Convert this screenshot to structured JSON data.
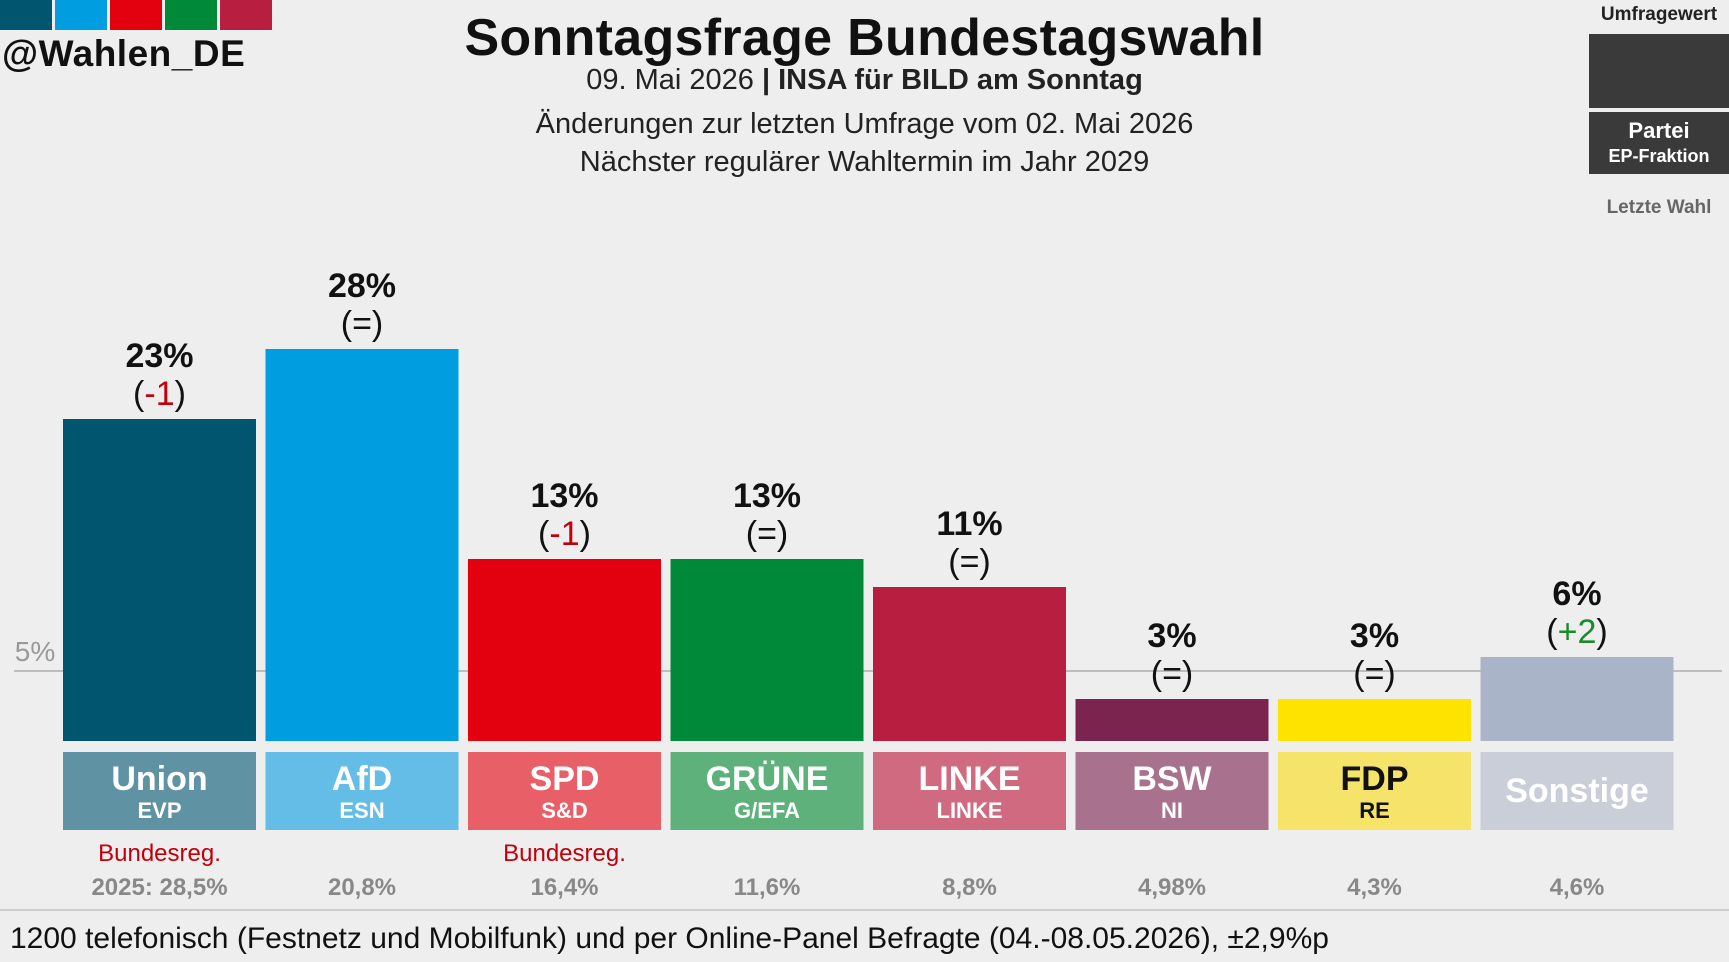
{
  "header": {
    "handle": "@Wahlen_DE",
    "title": "Sonntagsfrage Bundestagswahl",
    "date": "09. Mai 2026",
    "institute": "INSA für BILD am Sonntag",
    "change_note": "Änderungen zur letzten Umfrage vom 02. Mai 2026",
    "next_election": "Nächster regulärer Wahltermin im Jahr 2029",
    "stripe_colors": [
      "#02556f",
      "#009ee0",
      "#e3000f",
      "#008939",
      "#b71e3f"
    ]
  },
  "legend": {
    "top_label": "Umfragewert",
    "party_label": "Partei",
    "faction_label": "EP-Fraktion",
    "bottom_label": "Letzte Wahl"
  },
  "footer": {
    "note": "1200 telefonisch (Festnetz und Mobilfunk) und per Online-Panel Befragte (04.-08.05.2026), ±2,9%p"
  },
  "chart_data": {
    "type": "bar",
    "threshold": {
      "value": 5,
      "label": "5%"
    },
    "ylim": [
      0,
      30
    ],
    "bars": [
      {
        "party": "Union",
        "faction": "EVP",
        "value": 23,
        "value_label": "23%",
        "change": "-1",
        "change_color": "#c0000b",
        "color": "#02556f",
        "label_bg": "#5f93a4",
        "label_color": "#ffffff",
        "gov": "Bundesreg.",
        "last_election": "2025: 28,5%"
      },
      {
        "party": "AfD",
        "faction": "ESN",
        "value": 28,
        "value_label": "28%",
        "change": "=",
        "change_color": "#111111",
        "color": "#009ee0",
        "label_bg": "#64bde6",
        "label_color": "#ffffff",
        "gov": "",
        "last_election": "20,8%"
      },
      {
        "party": "SPD",
        "faction": "S&D",
        "value": 13,
        "value_label": "13%",
        "change": "-1",
        "change_color": "#c0000b",
        "color": "#e3000f",
        "label_bg": "#e85f68",
        "label_color": "#ffffff",
        "gov": "Bundesreg.",
        "last_election": "16,4%"
      },
      {
        "party": "GRÜNE",
        "faction": "G/EFA",
        "value": 13,
        "value_label": "13%",
        "change": "=",
        "change_color": "#111111",
        "color": "#008939",
        "label_bg": "#5eb17b",
        "label_color": "#ffffff",
        "gov": "",
        "last_election": "11,6%"
      },
      {
        "party": "LINKE",
        "faction": "LINKE",
        "value": 11,
        "value_label": "11%",
        "change": "=",
        "change_color": "#111111",
        "color": "#b71e3f",
        "label_bg": "#cf6a80",
        "label_color": "#ffffff",
        "gov": "",
        "last_election": "8,8%"
      },
      {
        "party": "BSW",
        "faction": "NI",
        "value": 3,
        "value_label": "3%",
        "change": "=",
        "change_color": "#111111",
        "color": "#7b2450",
        "label_bg": "#a8728f",
        "label_color": "#ffffff",
        "gov": "",
        "last_election": "4,98%"
      },
      {
        "party": "FDP",
        "faction": "RE",
        "value": 3,
        "value_label": "3%",
        "change": "=",
        "change_color": "#111111",
        "color": "#ffe300",
        "label_bg": "#f6e46a",
        "label_color": "#111111",
        "gov": "",
        "last_election": "4,3%"
      },
      {
        "party": "Sonstige",
        "faction": "",
        "value": 6,
        "value_label": "6%",
        "change": "+2",
        "change_color": "#1a8a2a",
        "color": "#aab4c8",
        "label_bg": "#c9ced9",
        "label_color": "#ffffff",
        "gov": "",
        "last_election": "4,6%"
      }
    ]
  }
}
